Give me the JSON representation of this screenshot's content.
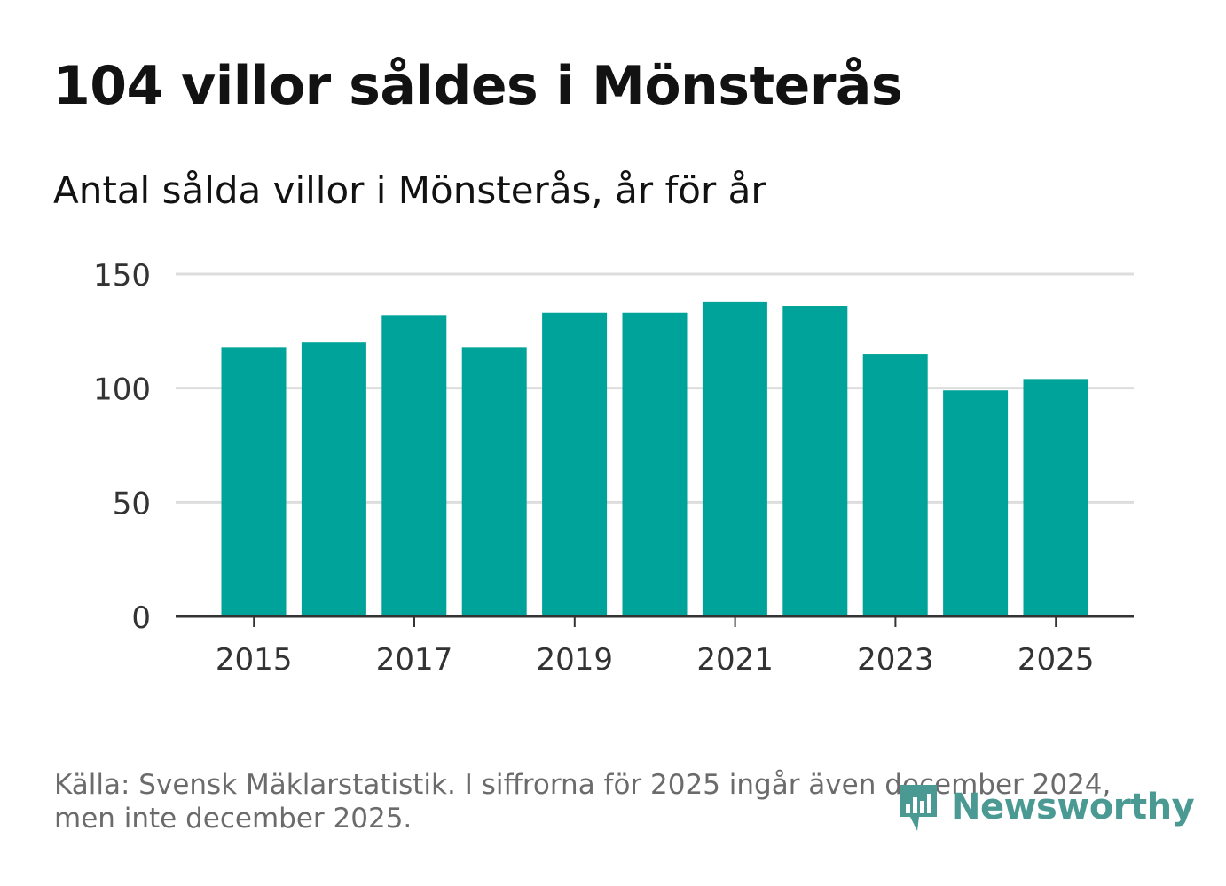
{
  "title": "104 villor såldes i Mönsterås",
  "subtitle": "Antal sålda villor i Mönsterås, år för år",
  "source": "Källa: Svensk Mäklarstatistik. I siffrorna för 2025 ingår även december 2024, men inte december 2025.",
  "logo_text": "Newsworthy",
  "colors": {
    "bar": "#00a39a",
    "grid": "#dddddd",
    "axis": "#333333",
    "text": "#121212",
    "muted": "#6b6b6b",
    "logo": "#4a9a93"
  },
  "chart_data": {
    "type": "bar",
    "title": "Antal sålda villor i Mönsterås, år för år",
    "xlabel": "",
    "ylabel": "",
    "categories": [
      "2015",
      "2016",
      "2017",
      "2018",
      "2019",
      "2020",
      "2021",
      "2022",
      "2023",
      "2024",
      "2025"
    ],
    "values": [
      118,
      120,
      132,
      118,
      133,
      133,
      138,
      136,
      115,
      99,
      104
    ],
    "ylim": [
      0,
      150
    ],
    "yticks": [
      0,
      50,
      100,
      150
    ],
    "xticks": [
      "2015",
      "2017",
      "2019",
      "2021",
      "2023",
      "2025"
    ],
    "grid": true,
    "legend": "none"
  }
}
